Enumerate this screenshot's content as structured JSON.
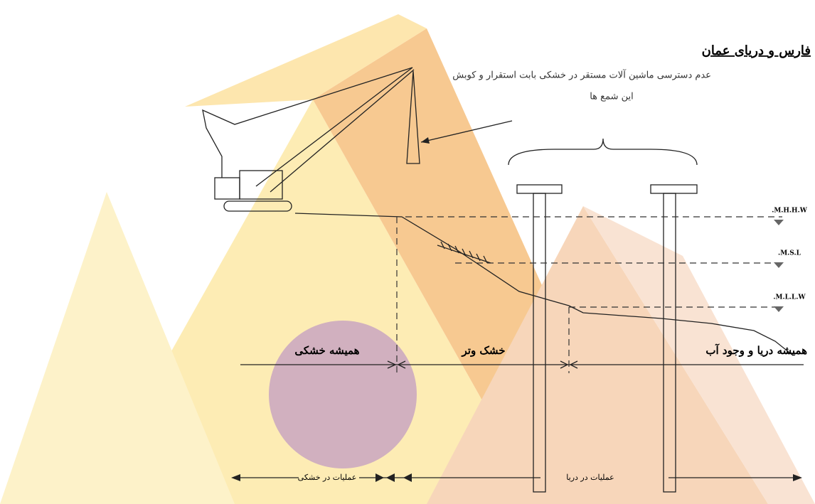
{
  "heading": "فارس و دریای عمان",
  "diagram": {
    "note_line_1": "عدم دسترسی ماشین آلات مستقر در خشکی بابت استقرار و کوبش",
    "note_line_2": "این شمع ها",
    "levels": [
      "M.H.H.W.",
      "M.S.L.",
      "M.L.L.W."
    ],
    "zones": [
      "همیشه خشکی",
      "خشک وتر",
      "همیشه دریا و وجود آب"
    ],
    "operations": [
      "عملیات در خشکی",
      "عملیات در دریا"
    ]
  }
}
